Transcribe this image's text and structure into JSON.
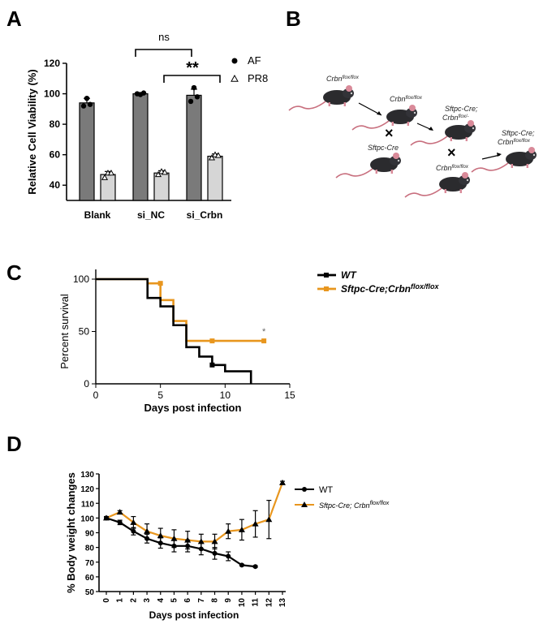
{
  "panels": {
    "A": "A",
    "B": "B",
    "C": "C",
    "D": "D"
  },
  "colors": {
    "af_bar": "#7a7a7a",
    "pr8_bar": "#d6d6d6",
    "wt_line": "#000000",
    "ko_line": "#e8961e"
  },
  "chart_data": [
    {
      "type": "bar",
      "panel": "A",
      "ylabel": "Relative Cell Viability (%)",
      "ylim": [
        30,
        120
      ],
      "yticks": [
        "40",
        "60",
        "80",
        "100",
        "120"
      ],
      "categories": [
        "Blank",
        "si_NC",
        "si_Crbn"
      ],
      "series": [
        {
          "name": "AF",
          "values": [
            94,
            100,
            99
          ],
          "errors": [
            3,
            0.5,
            4
          ],
          "points": [
            [
              92,
              97,
              93
            ],
            [
              100,
              99.5,
              100.5
            ],
            [
              95,
              104,
              98
            ]
          ]
        },
        {
          "name": "PR8",
          "values": [
            47,
            48,
            59
          ],
          "errors": [
            2,
            1.5,
            1.5
          ],
          "points": [
            [
              45,
              48,
              48
            ],
            [
              47,
              49,
              48.5
            ],
            [
              58,
              60,
              59.5
            ]
          ]
        }
      ],
      "legend": [
        {
          "marker": "●",
          "label": "AF"
        },
        {
          "marker": "▵",
          "label": "PR8"
        }
      ],
      "annotations": [
        {
          "text": "ns",
          "from": 1,
          "to": 2
        },
        {
          "text": "**",
          "from": 1,
          "to": 2
        }
      ]
    },
    {
      "type": "line",
      "panel": "C",
      "xlabel": "Days post infection",
      "ylabel": "Percent survival",
      "xlim": [
        0,
        15
      ],
      "ylim": [
        0,
        100
      ],
      "xticks": [
        "0",
        "5",
        "10",
        "15"
      ],
      "yticks": [
        "0",
        "50",
        "100"
      ],
      "legend": [
        {
          "label": "WT",
          "sup": ""
        },
        {
          "label": "Sftpc-Cre;Crbn",
          "sup": "flox/flox"
        }
      ],
      "series": [
        {
          "name": "WT",
          "steps": [
            [
              0,
              100
            ],
            [
              4,
              100
            ],
            [
              4,
              82
            ],
            [
              5,
              82
            ],
            [
              5,
              74
            ],
            [
              6,
              74
            ],
            [
              6,
              56
            ],
            [
              7,
              56
            ],
            [
              7,
              35
            ],
            [
              8,
              35
            ],
            [
              8,
              26
            ],
            [
              9,
              26
            ],
            [
              9,
              18
            ],
            [
              10,
              18
            ],
            [
              10,
              12
            ],
            [
              12,
              12
            ],
            [
              12,
              0
            ]
          ],
          "censored": [
            [
              9,
              18
            ]
          ]
        },
        {
          "name": "Sftpc-Cre;Crbn flox/flox",
          "steps": [
            [
              0,
              100
            ],
            [
              4,
              100
            ],
            [
              4,
              96
            ],
            [
              5,
              96
            ],
            [
              5,
              80
            ],
            [
              6,
              80
            ],
            [
              6,
              60
            ],
            [
              7,
              60
            ],
            [
              7,
              41
            ],
            [
              13,
              41
            ]
          ],
          "censored": [
            [
              5,
              96
            ],
            [
              9,
              41
            ],
            [
              13,
              41
            ]
          ]
        }
      ],
      "significance": "*"
    },
    {
      "type": "line",
      "panel": "D",
      "xlabel": "Days post infection",
      "ylabel": "% Body weight changes",
      "xlim": [
        0,
        13
      ],
      "ylim": [
        50,
        130
      ],
      "xticks": [
        "0",
        "1",
        "2",
        "3",
        "4",
        "5",
        "6",
        "7",
        "8",
        "9",
        "10",
        "11",
        "12",
        "13"
      ],
      "yticks": [
        "50",
        "60",
        "70",
        "80",
        "90",
        "100",
        "110",
        "120",
        "130"
      ],
      "legend": [
        {
          "label": "WT",
          "sup": ""
        },
        {
          "label": "Sftpc-Cre; Crbn",
          "sup": "flox/flox"
        }
      ],
      "series": [
        {
          "name": "WT",
          "x": [
            0,
            1,
            2,
            3,
            4,
            5,
            6,
            7,
            8,
            9,
            10,
            11
          ],
          "values": [
            100,
            97,
            91,
            86,
            83,
            81,
            81,
            79,
            76,
            74,
            68,
            67
          ],
          "errors": [
            1,
            1.5,
            2.5,
            3,
            3.5,
            4,
            4,
            4,
            4,
            3,
            0.5,
            0.5
          ]
        },
        {
          "name": "Sftpc-Cre; Crbn flox/flox",
          "x": [
            0,
            1,
            2,
            3,
            4,
            5,
            6,
            7,
            8,
            9,
            10,
            11,
            12,
            13
          ],
          "values": [
            100,
            104,
            97,
            91,
            88,
            86,
            85,
            84,
            84,
            91,
            92,
            96,
            99,
            124
          ],
          "errors": [
            1,
            1,
            4,
            5,
            5,
            6,
            6,
            5,
            5,
            5,
            7,
            9,
            13,
            1
          ]
        }
      ]
    }
  ],
  "mice": [
    {
      "base": "Crbn",
      "sup": "flox/flox"
    },
    {
      "base": "Crbn",
      "sup": "flox/flox"
    },
    {
      "base": "Sftpc-Cre",
      "sup": ""
    },
    {
      "base": "Sftpc-Cre;",
      "sup": ""
    },
    {
      "base": "Crbn",
      "sup": "flox/-"
    },
    {
      "base": "Crbn",
      "sup": "flox/flox"
    },
    {
      "base": "Sftpc-Cre;",
      "sup": ""
    },
    {
      "base": "Crbn",
      "sup": "flox/flox"
    }
  ],
  "cross_marks": [
    "×",
    "×"
  ]
}
